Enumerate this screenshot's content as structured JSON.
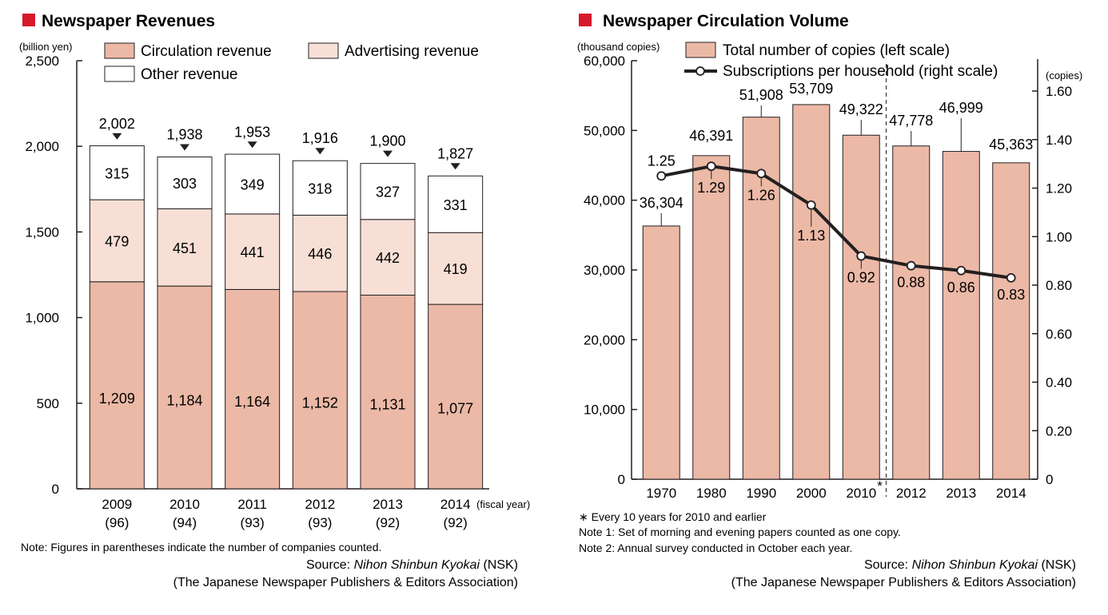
{
  "chart_data": [
    {
      "type": "bar",
      "stacked": true,
      "title": "Newspaper Revenues",
      "ylabel": "(billion yen)",
      "xlabel": "(fiscal year)",
      "ylim": [
        0,
        2500
      ],
      "yticks": [
        "0",
        "500",
        "1,000",
        "1,500",
        "2,000",
        "2,500"
      ],
      "categories": [
        "2009",
        "2010",
        "2011",
        "2012",
        "2013",
        "2014"
      ],
      "company_counts": [
        "(96)",
        "(94)",
        "(93)",
        "(93)",
        "(92)",
        "(92)"
      ],
      "series": [
        {
          "name": "Circulation revenue",
          "values": [
            1209,
            1184,
            1164,
            1152,
            1131,
            1077
          ],
          "labels": [
            "1,209",
            "1,184",
            "1,164",
            "1,152",
            "1,131",
            "1,077"
          ]
        },
        {
          "name": "Advertising revenue",
          "values": [
            479,
            451,
            441,
            446,
            442,
            419
          ],
          "labels": [
            "479",
            "451",
            "441",
            "446",
            "442",
            "419"
          ]
        },
        {
          "name": "Other revenue",
          "values": [
            315,
            303,
            349,
            318,
            327,
            331
          ],
          "labels": [
            "315",
            "303",
            "349",
            "318",
            "327",
            "331"
          ]
        }
      ],
      "totals": [
        2002,
        1938,
        1953,
        1916,
        1900,
        1827
      ],
      "total_labels": [
        "2,002",
        "1,938",
        "1,953",
        "1,916",
        "1,900",
        "1,827"
      ],
      "legend_placement": "top",
      "note": "Note: Figures in parentheses indicate the number of companies counted.",
      "source_prefix": "Source: ",
      "source_name": "Nihon Shinbun Kyokai",
      "source_suffix": " (NSK)",
      "source_org": "(The Japanese Newspaper Publishers & Editors Association)",
      "colors": {
        "circulation": "#ebb9a6",
        "advertising": "#f7dfd6",
        "other": "#ffffff",
        "title_square": "#d7182a",
        "stroke": "#231f20"
      }
    },
    {
      "type": "bar+line",
      "title": "Newspaper Circulation Volume",
      "ylabel_left": "(thousand copies)",
      "ylabel_right": "(copies)",
      "ylim_left": [
        0,
        60000
      ],
      "ylim_right": [
        0,
        1.6
      ],
      "yticks_left": [
        "0",
        "10,000",
        "20,000",
        "30,000",
        "40,000",
        "50,000",
        "60,000"
      ],
      "yticks_right": [
        "0",
        "0.20",
        "0.40",
        "0.60",
        "0.80",
        "1.00",
        "1.20",
        "1.40",
        "1.60"
      ],
      "categories": [
        "1970",
        "1980",
        "1990",
        "2000",
        "2010",
        "2012",
        "2013",
        "2014"
      ],
      "asterisk_marker": "*",
      "series": [
        {
          "name": "Total number of copies (left scale)",
          "type": "bar",
          "values": [
            36304,
            46391,
            51908,
            53709,
            49322,
            47778,
            46999,
            45363
          ],
          "labels": [
            "36,304",
            "46,391",
            "51,908",
            "53,709",
            "49,322",
            "47,778",
            "46,999",
            "45,363"
          ]
        },
        {
          "name": "Subscriptions per household (right scale)",
          "type": "line",
          "values": [
            1.25,
            1.29,
            1.26,
            1.13,
            0.92,
            0.88,
            0.86,
            0.83
          ],
          "labels": [
            "1.25",
            "1.29",
            "1.26",
            "1.13",
            "0.92",
            "0.88",
            "0.86",
            "0.83"
          ]
        }
      ],
      "legend_placement": "top",
      "notes": [
        "∗ Every 10 years for 2010 and earlier",
        "Note 1: Set of morning and evening papers counted as one copy.",
        "Note 2: Annual survey conducted in October each year."
      ],
      "source_prefix": "Source: ",
      "source_name": "Nihon Shinbun Kyokai",
      "source_suffix": " (NSK)",
      "source_org": "(The Japanese Newspaper Publishers & Editors Association)",
      "colors": {
        "bar": "#ebb9a6",
        "line": "#231f20",
        "title_square": "#d7182a"
      }
    }
  ]
}
